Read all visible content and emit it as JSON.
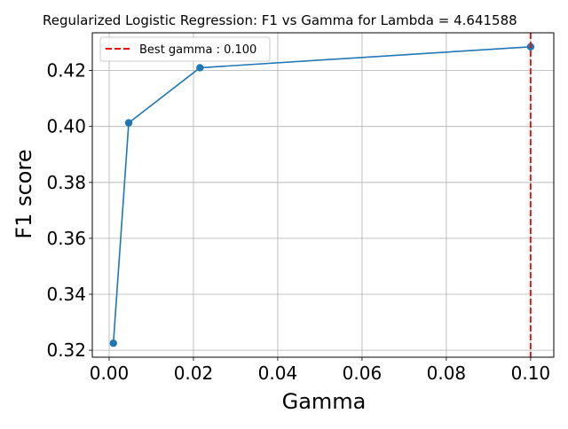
{
  "chart_data": {
    "type": "line",
    "title": "Regularized Logistic Regression: F1 vs Gamma for Lambda = 4.641588",
    "xlabel": "Gamma",
    "ylabel": "F1 score",
    "xlim": [
      -0.004,
      0.1055
    ],
    "ylim": [
      0.3175,
      0.4335
    ],
    "xticks": [
      0.0,
      0.02,
      0.04,
      0.06,
      0.08,
      0.1
    ],
    "xtick_labels": [
      "0.00",
      "0.02",
      "0.04",
      "0.06",
      "0.08",
      "0.10"
    ],
    "yticks": [
      0.32,
      0.34,
      0.36,
      0.38,
      0.4,
      0.42
    ],
    "ytick_labels": [
      "0.32",
      "0.34",
      "0.36",
      "0.38",
      "0.40",
      "0.42"
    ],
    "grid": true,
    "legend_position": "top-left",
    "series": [
      {
        "color": "#1f77b4",
        "marker": "circle",
        "x": [
          0.001,
          0.004642,
          0.021544,
          0.1
        ],
        "y": [
          0.3225,
          0.4013,
          0.421,
          0.4285
        ]
      }
    ],
    "reference_lines": [
      {
        "orientation": "vertical",
        "x": 0.1,
        "color": "#ff0000",
        "style": "dashed",
        "label": "Best gamma : 0.100"
      }
    ]
  }
}
